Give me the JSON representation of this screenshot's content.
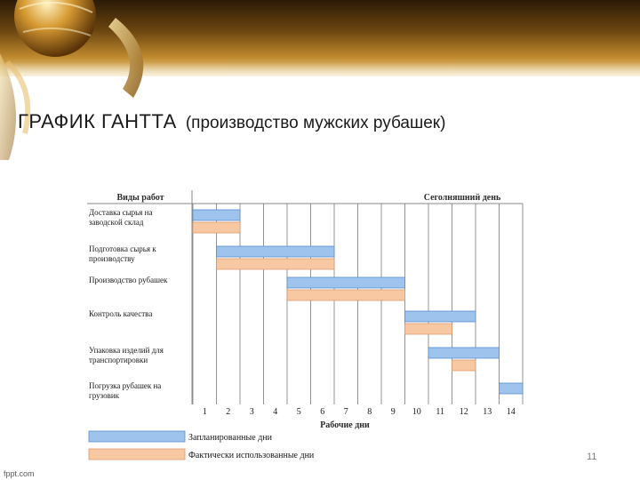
{
  "slide": {
    "title": "ГРАФИК ГАНТТА",
    "subtitle": "(производство мужских рубашек)",
    "number": "11",
    "footer_brand": "fppt.com"
  },
  "colors": {
    "planned": "#9ec4ee",
    "planned_border": "#5b8fd0",
    "actual": "#f8c8a2",
    "actual_border": "#e09a6c",
    "grid": "#7a7a7a"
  },
  "chart_data": {
    "type": "gantt",
    "header_left": "Виды работ",
    "header_right": "Сеголняшний день",
    "xlabel": "Рабочие дни",
    "days": [
      "1",
      "2",
      "3",
      "4",
      "5",
      "6",
      "7",
      "8",
      "9",
      "10",
      "11",
      "12",
      "13",
      "14"
    ],
    "tasks": [
      {
        "name": "Доставка сырья на заводской склад",
        "planned": [
          1,
          2
        ],
        "actual": [
          1,
          2
        ]
      },
      {
        "name": "Подготовка сырья к производству",
        "planned": [
          2,
          6
        ],
        "actual": [
          2,
          6
        ]
      },
      {
        "name": "Производство рубашек",
        "planned": [
          5,
          9
        ],
        "actual": [
          5,
          9
        ]
      },
      {
        "name": "Контроль качества",
        "planned": [
          10,
          12
        ],
        "actual": [
          10,
          11
        ]
      },
      {
        "name": "Упаковка изделий для транспортировки",
        "planned": [
          11,
          13
        ],
        "actual": [
          12,
          12
        ]
      },
      {
        "name": "Погрузка рубашек на грузовик",
        "planned": [
          14,
          14
        ],
        "actual": null
      }
    ],
    "legend": [
      {
        "key": "planned",
        "label": "Запланированные дни"
      },
      {
        "key": "actual",
        "label": "Фактически использованные дни"
      }
    ]
  }
}
